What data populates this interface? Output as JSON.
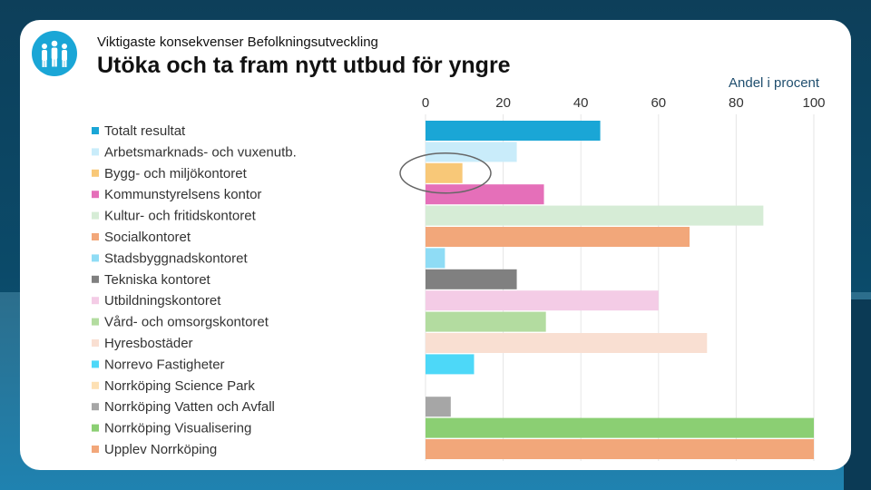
{
  "header": {
    "subtitle": "Viktigaste konsekvenser Befolkningsutveckling",
    "title": "Utöka och ta fram nytt utbud för yngre",
    "logo_icon": "people-group-icon"
  },
  "chart_data": {
    "type": "bar",
    "orientation": "horizontal",
    "unit_label": "Andel i procent",
    "xlim": [
      0,
      100
    ],
    "x_ticks": [
      "0",
      "20",
      "40",
      "60",
      "80",
      "100"
    ],
    "axis_position": "top",
    "legend_position": "left",
    "highlighted_category": "Bygg- och miljökontoret",
    "categories": [
      "Totalt resultat",
      "Arbetsmarknads- och vuxenutb.",
      "Bygg- och miljökontoret",
      "Kommunstyrelsens kontor",
      "Kultur- och fritidskontoret",
      "Socialkontoret",
      "Stadsbyggnadskontoret",
      "Tekniska kontoret",
      "Utbildningskontoret",
      "Vård- och omsorgskontoret",
      "Hyresbostäder",
      "Norrevo Fastigheter",
      "Norrköping Science Park",
      "Norrköping Vatten och Avfall",
      "Norrköping Visualisering",
      "Upplev Norrköping"
    ],
    "values": [
      45,
      23.5,
      9.5,
      30.5,
      87,
      68,
      5,
      23.5,
      60,
      31,
      72.5,
      12.5,
      0,
      6.5,
      100,
      100
    ],
    "colors": [
      "#1aa6d6",
      "#c9ecfa",
      "#f8c878",
      "#e56fb9",
      "#d6ecd6",
      "#f2a77a",
      "#8fdcf5",
      "#808080",
      "#f4cce6",
      "#b3dca0",
      "#f9dfd2",
      "#4dd8f8",
      "#fde0b4",
      "#a6a6a6",
      "#8bcf73",
      "#f2a77a"
    ]
  }
}
